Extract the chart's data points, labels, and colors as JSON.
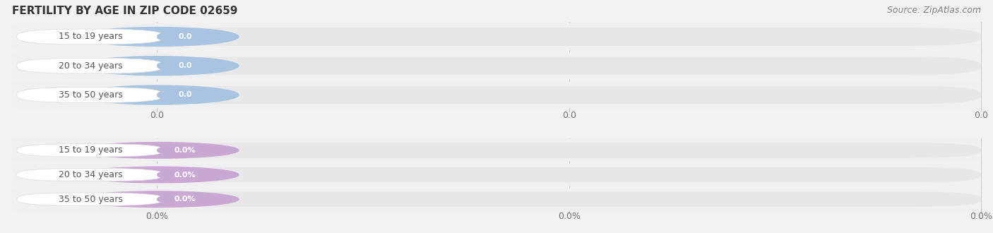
{
  "title": "FERTILITY BY AGE IN ZIP CODE 02659",
  "source": "Source: ZipAtlas.com",
  "background_color": "#f2f2f2",
  "top_group": {
    "categories": [
      "15 to 19 years",
      "20 to 34 years",
      "35 to 50 years"
    ],
    "values": [
      0.0,
      0.0,
      0.0
    ],
    "bar_color": "#a8c4e0",
    "value_badge_color": "#a8c4e0",
    "value_text_color": "#ffffff",
    "label_text_color": "#555555",
    "tick_labels": [
      "0.0",
      "0.0",
      "0.0"
    ],
    "bar_bg_color": "#e8e8e8",
    "row_bg_color": "#f0f0f0"
  },
  "bottom_group": {
    "categories": [
      "15 to 19 years",
      "20 to 34 years",
      "35 to 50 years"
    ],
    "values": [
      0.0,
      0.0,
      0.0
    ],
    "bar_color": "#c9a8d4",
    "value_badge_color": "#c9a8d4",
    "value_text_color": "#ffffff",
    "label_text_color": "#555555",
    "tick_labels": [
      "0.0%",
      "0.0%",
      "0.0%"
    ],
    "bar_bg_color": "#e8e8e8",
    "row_bg_color": "#f0f0f0"
  },
  "figsize": [
    14.06,
    3.3
  ],
  "dpi": 100,
  "title_fontsize": 11,
  "source_fontsize": 9,
  "label_fontsize": 9,
  "tick_fontsize": 9,
  "badge_fontsize": 8
}
